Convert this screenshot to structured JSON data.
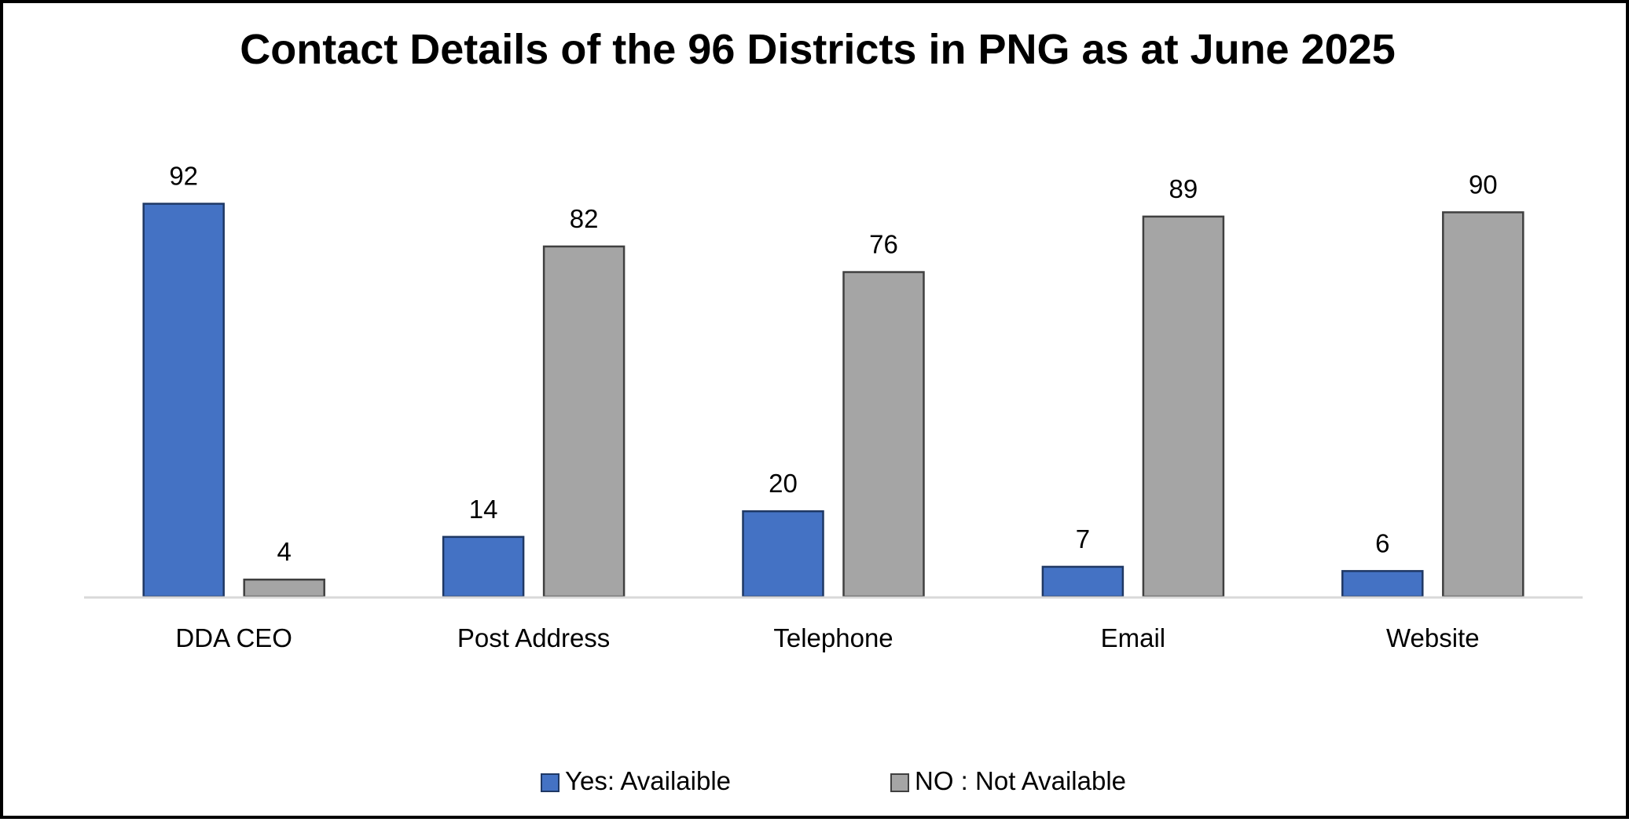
{
  "chart_data": {
    "type": "bar",
    "title": "Contact Details of the 96 Districts in PNG as at June 2025",
    "categories": [
      "DDA CEO",
      "Post Address",
      "Telephone",
      "Email",
      "Website"
    ],
    "series": [
      {
        "name": "Yes: Availaible",
        "values": [
          92,
          14,
          20,
          7,
          6
        ],
        "color": "#4472C4",
        "stroke": "#1F3864"
      },
      {
        "name": "NO : Not Available",
        "values": [
          4,
          82,
          76,
          89,
          90
        ],
        "color": "#A5A5A5",
        "stroke": "#404040"
      }
    ],
    "ylim": [
      0,
      100
    ],
    "grid": false,
    "data_labels": true,
    "legend_position": "bottom-center",
    "axis_color": "#D9D9D9"
  }
}
